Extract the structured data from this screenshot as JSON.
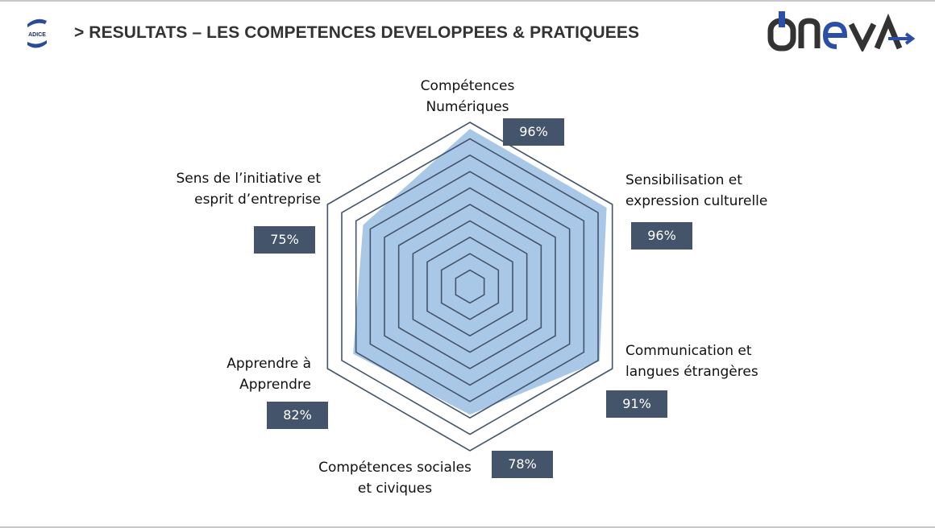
{
  "header": {
    "title": "> RESULTATS – LES COMPETENCES DEVELOPPEES & PRATIQUEES",
    "left_logo": "ADICE",
    "right_logo": "ONEVA"
  },
  "chart_data": {
    "type": "radar",
    "title": "",
    "categories": [
      "Compétences Numériques",
      "Sensibilisation et expression culturelle",
      "Communication et langues étrangères",
      "Compétences sociales et civiques",
      "Apprendre à Apprendre",
      "Sens de l’initiative et esprit d’entreprise"
    ],
    "category_lines": [
      [
        "Compétences",
        "Numériques"
      ],
      [
        "Sensibilisation et",
        "expression culturelle"
      ],
      [
        "Communication et",
        "langues étrangères"
      ],
      [
        "Compétences sociales",
        "et civiques"
      ],
      [
        "Apprendre à",
        "Apprendre"
      ],
      [
        "Sens de l’initiative et",
        "esprit d’entreprise"
      ]
    ],
    "values": [
      96,
      96,
      91,
      78,
      82,
      75
    ],
    "value_labels": [
      "96%",
      "96%",
      "91%",
      "78%",
      "82%",
      "75%"
    ],
    "rlim": [
      0,
      100
    ],
    "rings": 10,
    "colors": {
      "fill": "#a9c8e8",
      "grid": "#44546a",
      "label_box": "#44546a"
    }
  }
}
